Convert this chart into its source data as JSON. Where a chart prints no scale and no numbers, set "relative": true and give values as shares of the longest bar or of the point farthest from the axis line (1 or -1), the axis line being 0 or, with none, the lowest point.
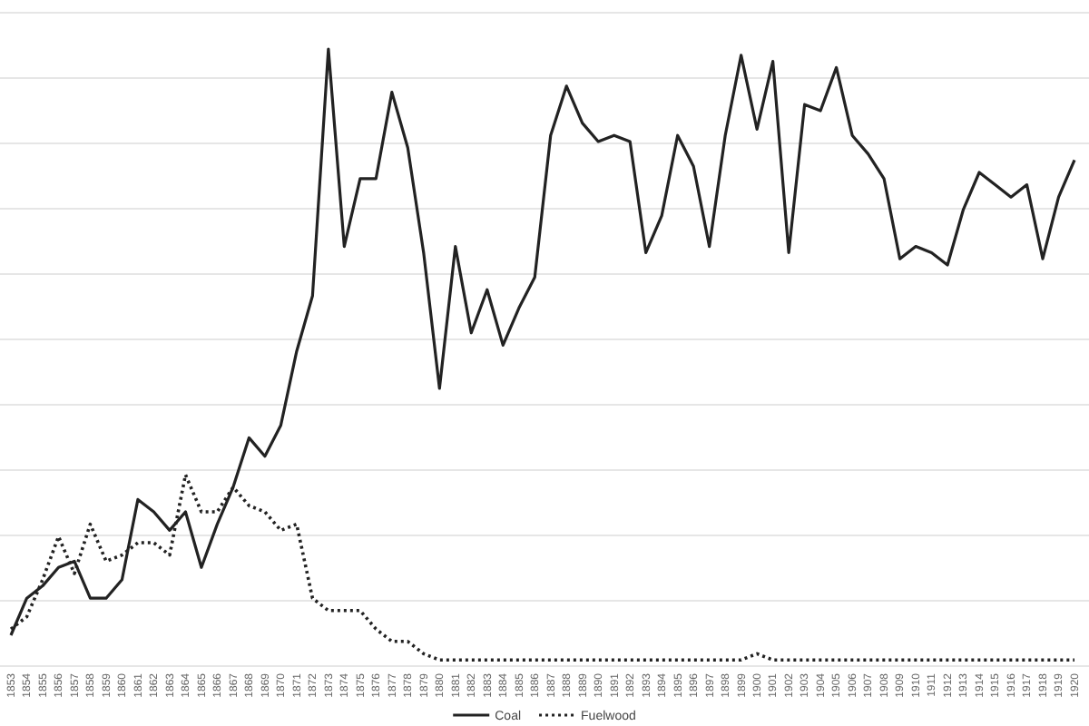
{
  "chart_data": {
    "type": "line",
    "relative": true,
    "grid": "y",
    "legend": "bottom",
    "categories": [
      "1853",
      "1854",
      "1855",
      "1856",
      "1857",
      "1858",
      "1859",
      "1860",
      "1861",
      "1862",
      "1863",
      "1864",
      "1865",
      "1866",
      "1867",
      "1868",
      "1869",
      "1870",
      "1871",
      "1872",
      "1873",
      "1874",
      "1875",
      "1876",
      "1877",
      "1878",
      "1879",
      "1880",
      "1881",
      "1882",
      "1883",
      "1884",
      "1885",
      "1886",
      "1887",
      "1888",
      "1889",
      "1890",
      "1891",
      "1892",
      "1893",
      "1894",
      "1895",
      "1896",
      "1897",
      "1898",
      "1899",
      "1900",
      "1901",
      "1902",
      "1903",
      "1904",
      "1905",
      "1906",
      "1907",
      "1908",
      "1909",
      "1910",
      "1911",
      "1912",
      "1913",
      "1914",
      "1915",
      "1916",
      "1917",
      "1918",
      "1919",
      "1920"
    ],
    "series": [
      {
        "name": "Coal",
        "color": "#222222",
        "line_style": "solid",
        "values": [
          0.05,
          0.11,
          0.13,
          0.16,
          0.17,
          0.11,
          0.11,
          0.14,
          0.27,
          0.25,
          0.22,
          0.25,
          0.16,
          0.23,
          0.29,
          0.37,
          0.34,
          0.39,
          0.51,
          0.6,
          1,
          0.68,
          0.79,
          0.79,
          0.93,
          0.84,
          0.67,
          0.45,
          0.68,
          0.54,
          0.61,
          0.52,
          0.58,
          0.63,
          0.86,
          0.94,
          0.88,
          0.85,
          0.86,
          0.85,
          0.67,
          0.73,
          0.86,
          0.81,
          0.68,
          0.86,
          0.99,
          0.87,
          0.98,
          0.67,
          0.91,
          0.9,
          0.97,
          0.86,
          0.83,
          0.79,
          0.66,
          0.68,
          0.67,
          0.65,
          0.74,
          0.8,
          0.78,
          0.76,
          0.78,
          0.66,
          0.76,
          0.82
        ]
      },
      {
        "name": "Fuelwood",
        "color": "#222222",
        "line_style": "dotted",
        "values": [
          0.06,
          0.08,
          0.14,
          0.21,
          0.15,
          0.23,
          0.17,
          0.18,
          0.2,
          0.2,
          0.18,
          0.31,
          0.25,
          0.25,
          0.29,
          0.26,
          0.25,
          0.22,
          0.23,
          0.11,
          0.09,
          0.09,
          0.09,
          0.06,
          0.04,
          0.04,
          0.02,
          0.01,
          0.01,
          0.01,
          0.01,
          0.01,
          0.01,
          0.01,
          0.01,
          0.01,
          0.01,
          0.01,
          0.01,
          0.01,
          0.01,
          0.01,
          0.01,
          0.01,
          0.01,
          0.01,
          0.01,
          0.02,
          0.01,
          0.01,
          0.01,
          0.01,
          0.01,
          0.01,
          0.01,
          0.01,
          0.01,
          0.01,
          0.01,
          0.01,
          0.01,
          0.01,
          0.01,
          0.01,
          0.01,
          0.01,
          0.01,
          0.01
        ]
      }
    ]
  }
}
